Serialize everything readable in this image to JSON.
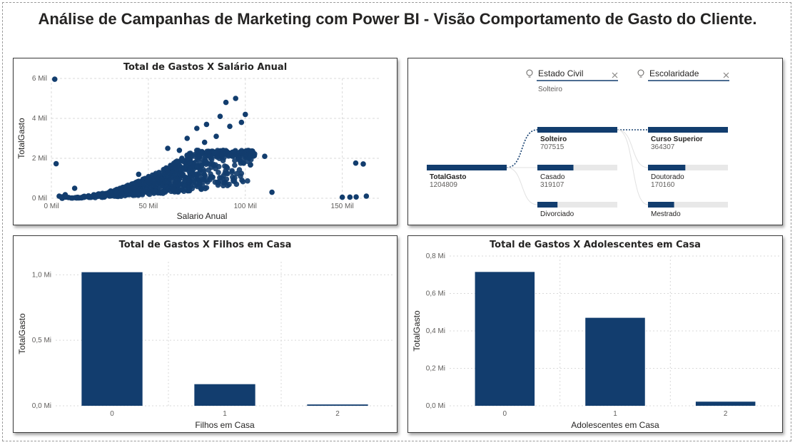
{
  "page": {
    "title": "Análise de Campanhas de Marketing com Power BI - Visão Comportamento de Gasto do Cliente."
  },
  "colors": {
    "bar": "#123d6e",
    "point": "#123d6e",
    "track": "#e8e8e8",
    "grid": "#d9d9d9"
  },
  "scatter": {
    "title": "Total de Gastos X Salário Anual",
    "chart_data": {
      "type": "scatter",
      "xlabel": "Salario Anual",
      "ylabel": "TotalGasto",
      "xlim": [
        0,
        170000
      ],
      "ylim": [
        0,
        6000
      ],
      "x_ticks": [
        {
          "v": 0,
          "label": "0 Mil"
        },
        {
          "v": 50000,
          "label": "50 Mil"
        },
        {
          "v": 100000,
          "label": "100 Mil"
        },
        {
          "v": 150000,
          "label": "150 Mil"
        }
      ],
      "y_ticks": [
        {
          "v": 0,
          "label": "0 Mil"
        },
        {
          "v": 2000,
          "label": "2 Mil"
        },
        {
          "v": 4000,
          "label": "4 Mil"
        },
        {
          "v": 6000,
          "label": "6 Mil"
        }
      ],
      "points": [
        [
          1730,
          5961
        ],
        [
          2447,
          1730
        ],
        [
          4023,
          105
        ],
        [
          5648,
          71
        ],
        [
          7144,
          176
        ],
        [
          7500,
          55
        ],
        [
          8820,
          37
        ],
        [
          113734,
          303
        ],
        [
          150000,
          50
        ],
        [
          153924,
          56
        ],
        [
          156924,
          1760
        ],
        [
          160803,
          1717
        ],
        [
          157146,
          65
        ],
        [
          162397,
          107
        ],
        [
          84000,
          2300
        ],
        [
          85000,
          3100
        ],
        [
          90000,
          4800
        ],
        [
          95000,
          5000
        ],
        [
          100000,
          4200
        ],
        [
          98000,
          3800
        ],
        [
          92000,
          3600
        ],
        [
          102000,
          2000
        ],
        [
          110000,
          2100
        ],
        [
          60000,
          2500
        ],
        [
          70000,
          3000
        ],
        [
          75000,
          3500
        ],
        [
          80000,
          3700
        ],
        [
          87000,
          4100
        ],
        [
          66000,
          2400
        ],
        [
          79000,
          2800
        ],
        [
          12000,
          500
        ],
        [
          45000,
          1200
        ]
      ],
      "cloud": {
        "x_center": 62000,
        "x_spread": 22000,
        "y_scale": 0.03,
        "count": 900
      }
    }
  },
  "tree": {
    "filters": [
      {
        "label": "Estado Civil",
        "selected": "Solteiro"
      },
      {
        "label": "Escolaridade",
        "selected": ""
      }
    ],
    "root": {
      "label": "TotalGasto",
      "value": "1204809",
      "num": 1204809
    },
    "level1": [
      {
        "label": "Solteiro",
        "value": "707515",
        "num": 707515,
        "bold": true
      },
      {
        "label": "Casado",
        "value": "319107",
        "num": 319107
      },
      {
        "label": "Divorciado",
        "value": "178187",
        "num": 178187
      }
    ],
    "level2": [
      {
        "label": "Curso Superior",
        "value": "364307",
        "num": 364307,
        "bold": true
      },
      {
        "label": "Doutorado",
        "value": "170160",
        "num": 170160
      },
      {
        "label": "Mestrado",
        "value": "119045",
        "num": 119045
      }
    ],
    "level2_max": 364307
  },
  "filhos": {
    "title": "Total de Gastos X Filhos em Casa",
    "chart_data": {
      "type": "bar",
      "categories": [
        "0",
        "1",
        "2"
      ],
      "values": [
        1020000,
        165000,
        10000
      ],
      "xlabel": "Filhos em Casa",
      "ylabel": "TotalGasto",
      "ylim": [
        0,
        1100000
      ],
      "y_ticks": [
        {
          "v": 0,
          "label": "0,0 Mi"
        },
        {
          "v": 500000,
          "label": "0,5 Mi"
        },
        {
          "v": 1000000,
          "label": "1,0 Mi"
        }
      ]
    }
  },
  "adolescentes": {
    "title": "Total de Gastos X Adolescentes em Casa",
    "chart_data": {
      "type": "bar",
      "categories": [
        "0",
        "1",
        "2"
      ],
      "values": [
        715000,
        470000,
        22000
      ],
      "xlabel": "Adolescentes em Casa",
      "ylabel": "TotalGasto",
      "ylim": [
        0,
        800000
      ],
      "y_ticks": [
        {
          "v": 0,
          "label": "0,0 Mi"
        },
        {
          "v": 200000,
          "label": "0,2 Mi"
        },
        {
          "v": 400000,
          "label": "0,4 Mi"
        },
        {
          "v": 600000,
          "label": "0,6 Mi"
        },
        {
          "v": 800000,
          "label": "0,8 Mi"
        }
      ]
    }
  }
}
